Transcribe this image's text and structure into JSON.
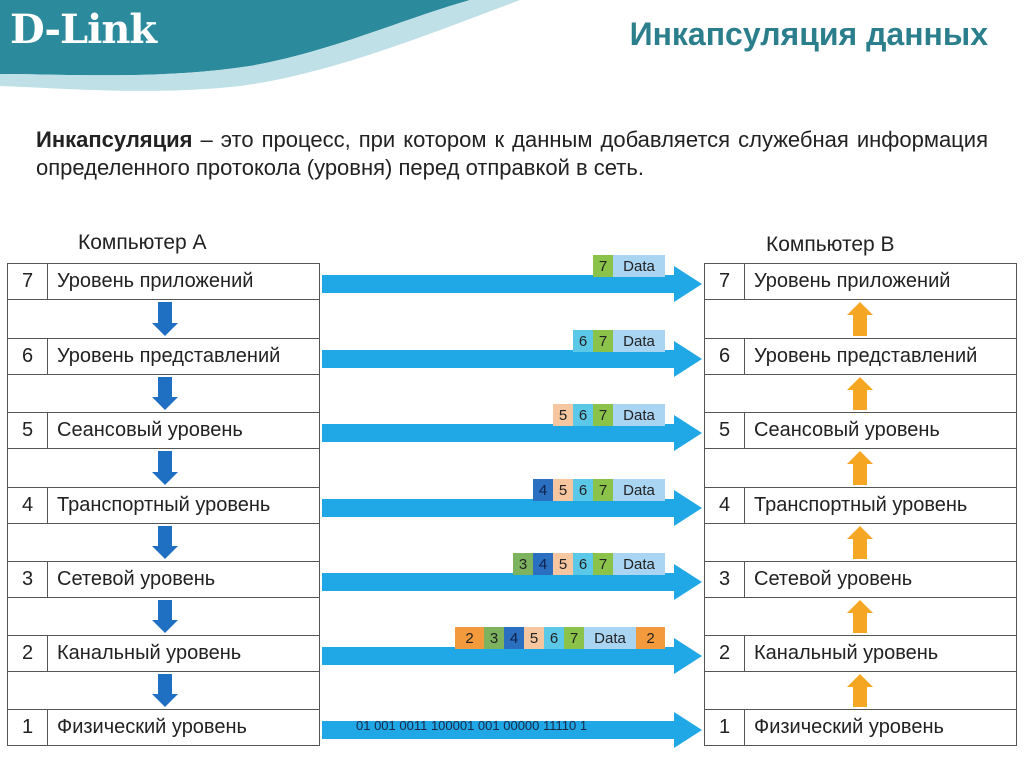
{
  "header": {
    "logo": "D-Link",
    "title": "Инкапсуляция данных"
  },
  "definition": {
    "term": "Инкапсуляция",
    "text": " – это процесс, при котором к данным добавляется служебная информация определенного протокола (уровня) перед отправкой в сеть."
  },
  "computer_a": {
    "label": "Компьютер А"
  },
  "computer_b": {
    "label": "Компьютер В"
  },
  "layers": [
    {
      "num": "7",
      "name": "Уровень приложений"
    },
    {
      "num": "6",
      "name": "Уровень представлений"
    },
    {
      "num": "5",
      "name": "Сеансовый уровень"
    },
    {
      "num": "4",
      "name": "Транспортный уровень"
    },
    {
      "num": "3",
      "name": "Сетевой уровень"
    },
    {
      "num": "2",
      "name": "Канальный уровень"
    },
    {
      "num": "1",
      "name": "Физический уровень"
    }
  ],
  "packets": [
    [
      {
        "t": "7",
        "c": "#8bc34a"
      },
      {
        "t": "Data",
        "c": "#a9d4f2"
      }
    ],
    [
      {
        "t": "6",
        "c": "#5bc8e8"
      },
      {
        "t": "7",
        "c": "#8bc34a"
      },
      {
        "t": "Data",
        "c": "#a9d4f2"
      }
    ],
    [
      {
        "t": "5",
        "c": "#f6c6a0"
      },
      {
        "t": "6",
        "c": "#5bc8e8"
      },
      {
        "t": "7",
        "c": "#8bc34a"
      },
      {
        "t": "Data",
        "c": "#a9d4f2"
      }
    ],
    [
      {
        "t": "4",
        "c": "#2a6fc0"
      },
      {
        "t": "5",
        "c": "#f6c6a0"
      },
      {
        "t": "6",
        "c": "#5bc8e8"
      },
      {
        "t": "7",
        "c": "#8bc34a"
      },
      {
        "t": "Data",
        "c": "#a9d4f2"
      }
    ],
    [
      {
        "t": "3",
        "c": "#7db35e"
      },
      {
        "t": "4",
        "c": "#2a6fc0"
      },
      {
        "t": "5",
        "c": "#f6c6a0"
      },
      {
        "t": "6",
        "c": "#5bc8e8"
      },
      {
        "t": "7",
        "c": "#8bc34a"
      },
      {
        "t": "Data",
        "c": "#a9d4f2"
      }
    ],
    [
      {
        "t": "2",
        "c": "#f39a3c"
      },
      {
        "t": "3",
        "c": "#7db35e"
      },
      {
        "t": "4",
        "c": "#2a6fc0"
      },
      {
        "t": "5",
        "c": "#f6c6a0"
      },
      {
        "t": "6",
        "c": "#5bc8e8"
      },
      {
        "t": "7",
        "c": "#8bc34a"
      },
      {
        "t": "Data",
        "c": "#a9d4f2"
      },
      {
        "t": "2",
        "c": "#f39a3c"
      }
    ]
  ],
  "bits": "01 001 0011 100001 001 00000 11110 1",
  "colors": {
    "arrow": "#1fa7e6",
    "down_arrow": "#1f6fc2",
    "up_arrow": "#f5a623",
    "header": "#2b8a9c"
  }
}
